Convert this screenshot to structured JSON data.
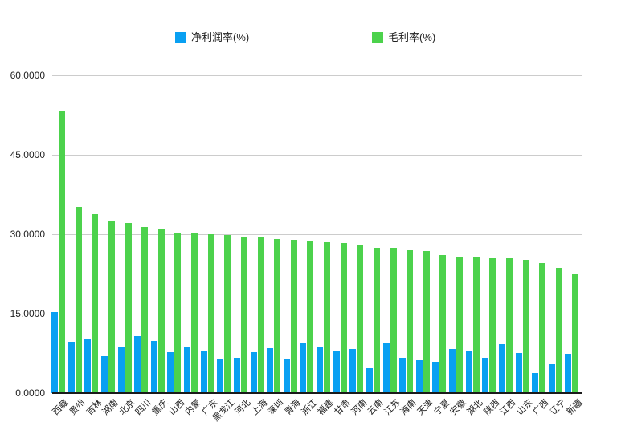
{
  "legend": {
    "items": [
      {
        "name": "net-profit-margin",
        "label": "净利润率(%)",
        "color": "#09A0F2"
      },
      {
        "name": "gross-margin",
        "label": "毛利率(%)",
        "color": "#4CD24C"
      }
    ]
  },
  "chart_data": {
    "type": "bar",
    "title": "",
    "xlabel": "",
    "ylabel": "",
    "ylim": [
      0,
      60
    ],
    "y_tick_labels": [
      "0.0000",
      "15.0000",
      "30.0000",
      "45.0000",
      "60.0000"
    ],
    "y_tick_values": [
      0,
      15,
      30,
      45,
      60
    ],
    "grid": true,
    "legend_position": "top",
    "categories": [
      "西藏",
      "贵州",
      "吉林",
      "湖南",
      "北京",
      "四川",
      "重庆",
      "山西",
      "内蒙",
      "广东",
      "黑龙江",
      "河北",
      "上海",
      "深圳",
      "青海",
      "浙江",
      "福建",
      "甘肃",
      "河南",
      "云南",
      "江苏",
      "海南",
      "天津",
      "宁夏",
      "安徽",
      "湖北",
      "陕西",
      "江西",
      "山东",
      "广西",
      "辽宁",
      "新疆"
    ],
    "series": [
      {
        "name": "净利润率(%)",
        "key": "net-profit-margin",
        "color": "#09A0F2",
        "values": [
          15.3,
          9.7,
          10.1,
          7.0,
          8.8,
          10.8,
          9.9,
          7.7,
          8.7,
          8.1,
          6.3,
          6.6,
          7.8,
          8.5,
          6.5,
          9.6,
          8.6,
          8.0,
          8.3,
          4.7,
          9.5,
          6.7,
          6.2,
          5.9,
          8.3,
          8.1,
          6.6,
          9.2,
          7.6,
          3.8,
          5.5,
          7.4
        ]
      },
      {
        "name": "毛利率(%)",
        "key": "gross-margin",
        "color": "#4CD24C",
        "values": [
          53.3,
          35.2,
          33.8,
          32.4,
          32.1,
          31.4,
          31.0,
          30.3,
          30.2,
          30.0,
          29.8,
          29.6,
          29.5,
          29.1,
          29.0,
          28.8,
          28.5,
          28.3,
          28.1,
          27.5,
          27.4,
          27.0,
          26.8,
          26.0,
          25.8,
          25.7,
          25.5,
          25.4,
          25.2,
          24.6,
          23.6,
          22.5
        ]
      }
    ]
  }
}
